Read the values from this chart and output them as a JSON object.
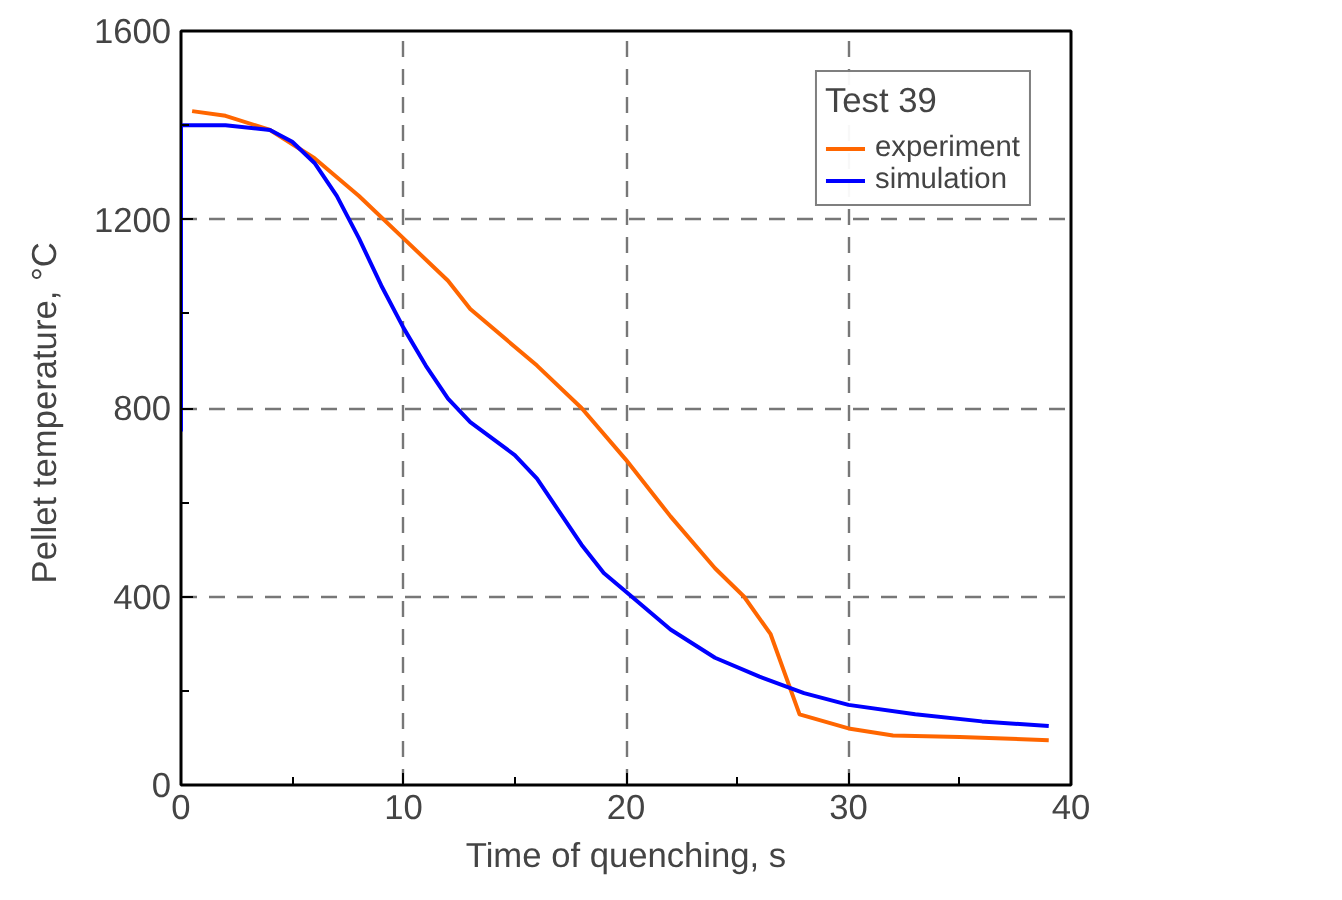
{
  "chart_data": {
    "type": "line",
    "xlabel": "Time of quenching, s",
    "ylabel": "Pellet  temperature, °C",
    "legend_title": "Test 39",
    "legend": "top right",
    "grid": true,
    "line_style": "solid",
    "xlim": [
      0,
      40
    ],
    "ylim": [
      0,
      1600
    ],
    "xticks": [
      0,
      10,
      20,
      30,
      40
    ],
    "yticks": [
      0,
      400,
      800,
      1200,
      1600
    ],
    "series": [
      {
        "name": "experiment",
        "color": "#ff6600",
        "x": [
          0.5,
          2,
          4,
          6,
          8,
          10,
          12,
          13,
          16,
          18,
          20,
          22,
          24,
          25.3,
          26.5,
          27.8,
          30,
          32,
          35,
          39
        ],
        "values": [
          1430,
          1420,
          1390,
          1330,
          1250,
          1160,
          1070,
          1010,
          890,
          800,
          690,
          570,
          460,
          400,
          320,
          150,
          120,
          105,
          102,
          95
        ]
      },
      {
        "name": "simulation",
        "color": "#0000ff",
        "x": [
          0,
          0,
          2,
          4,
          5,
          6,
          7,
          8,
          9,
          10,
          11,
          12,
          13,
          15,
          16,
          17,
          18,
          19,
          20,
          22,
          24,
          26,
          28,
          30,
          33,
          36,
          39
        ],
        "values": [
          750,
          1400,
          1400,
          1390,
          1365,
          1320,
          1250,
          1160,
          1060,
          970,
          890,
          820,
          770,
          700,
          650,
          580,
          510,
          450,
          410,
          330,
          270,
          230,
          195,
          170,
          150,
          135,
          125
        ]
      }
    ]
  }
}
